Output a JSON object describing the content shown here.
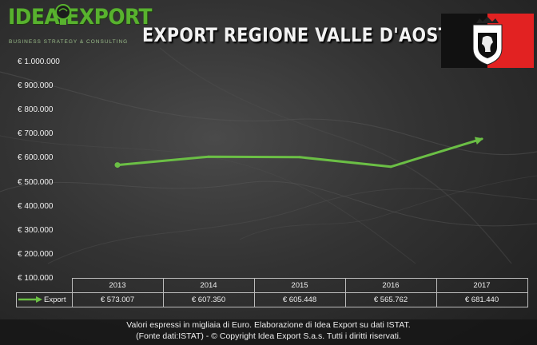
{
  "logo": {
    "name": "IDEA EXPORT",
    "tagline": "BUSINESS STRATEGY & CONSULTING"
  },
  "title": "EXPORT REGIONE VALLE D'AOSTA",
  "footnote": {
    "line1": "Valori espressi in migliaia di Euro. Elaborazione di Idea Export su dati ISTAT.",
    "line2": "(Fonte dati:ISTAT) - © Copyright Idea Export S.a.s. Tutti i diritti riservati."
  },
  "colors": {
    "line": "#6bbf45",
    "logo": "#58b22e",
    "flag_left": "#111111",
    "flag_right": "#e22222"
  },
  "chart_data": {
    "type": "line",
    "categories": [
      "2013",
      "2014",
      "2015",
      "2016",
      "2017"
    ],
    "series": [
      {
        "name": "Export",
        "values": [
          573007,
          607350,
          605448,
          565762,
          681440
        ],
        "labels": [
          "€ 573.007",
          "€ 607.350",
          "€ 605.448",
          "€ 565.762",
          "€ 681.440"
        ]
      }
    ],
    "ylim": [
      100000,
      1000000
    ],
    "yticks": [
      100000,
      200000,
      300000,
      400000,
      500000,
      600000,
      700000,
      800000,
      900000,
      1000000
    ],
    "ytick_labels": [
      "€ 100.000",
      "€ 200.000",
      "€ 300.000",
      "€ 400.000",
      "€ 500.000",
      "€ 600.000",
      "€ 700.000",
      "€ 800.000",
      "€ 900.000",
      "€ 1.000.000"
    ],
    "title": "EXPORT REGIONE VALLE D'AOSTA",
    "legend": "data table"
  }
}
